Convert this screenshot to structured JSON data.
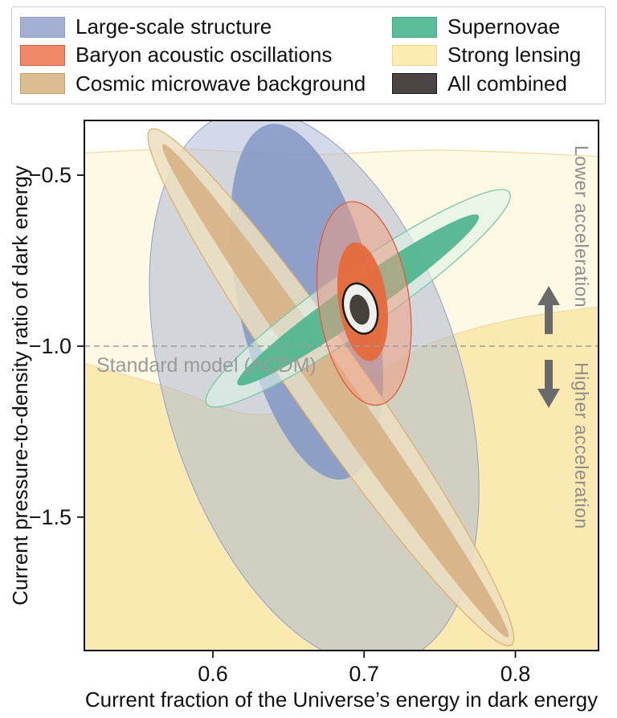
{
  "legend": {
    "items": [
      {
        "label": "Large-scale structure",
        "color": "#a3b0d3",
        "border": "#8fa0c8"
      },
      {
        "label": "Baryon acoustic oscillations",
        "color": "#f08a66",
        "border": "#de5a3c"
      },
      {
        "label": "Cosmic microwave background",
        "color": "#dcbd92",
        "border": "#c7a06c"
      },
      {
        "label": "Supernovae",
        "color": "#5cbd99",
        "border": "#44a782"
      },
      {
        "label": "Strong lensing",
        "color": "#fcecb2",
        "border": "#e9d493"
      },
      {
        "label": "All combined",
        "color": "#4b4641",
        "border": "#1b1b1b"
      }
    ]
  },
  "chart_data": {
    "type": "confidence_regions",
    "title": "",
    "xlabel": "Current fraction of the Universe’s energy in dark energy",
    "ylabel": "Current pressure-to-density ratio of dark energy",
    "xlim": [
      0.515,
      0.855
    ],
    "ylim": [
      -1.89,
      -0.34
    ],
    "xticks": [
      "0.6",
      "0.7",
      "0.8"
    ],
    "xtick_values": [
      0.6,
      0.7,
      0.8
    ],
    "yticks": [
      "−0.5",
      "−1.0",
      "−1.5"
    ],
    "ytick_values": [
      -0.5,
      -1.0,
      -1.5
    ],
    "grid": false,
    "legend_position": "top",
    "reference_line": {
      "y": -1.0,
      "label": "Standard model (ΛCDM)",
      "style": "dashed",
      "color": "#9b9b9b"
    },
    "annotations": {
      "lower": "Lower acceleration",
      "higher": "Higher acceleration"
    },
    "series": [
      {
        "id": "strong-lensing",
        "name": "Strong lensing",
        "type": "band",
        "levels": [
          {
            "top_boundary": [
              [
                0.515,
                -0.435
              ],
              [
                0.58,
                -0.424
              ],
              [
                0.66,
                -0.44
              ],
              [
                0.75,
                -0.427
              ],
              [
                0.855,
                -0.445
              ]
            ],
            "fill": "#fdf8e1",
            "opacity": 0.9,
            "stroke": "#eed9a0",
            "sw": 1.2
          },
          {
            "top_boundary": [
              [
                0.515,
                -1.05
              ],
              [
                0.57,
                -1.12
              ],
              [
                0.63,
                -1.2
              ],
              [
                0.69,
                -1.12
              ],
              [
                0.745,
                -0.99
              ],
              [
                0.8,
                -0.92
              ],
              [
                0.855,
                -0.885
              ]
            ],
            "fill": "#fae9ae",
            "opacity": 0.95,
            "stroke": "#eed59b",
            "sw": 1
          }
        ]
      },
      {
        "id": "large-scale-structure",
        "name": "Large-scale structure",
        "type": "ellipses",
        "levels": [
          {
            "cx": 0.667,
            "cy": -1.12,
            "rx": 0.098,
            "ry": 0.84,
            "angle": -17,
            "fill": "#a8b3d1",
            "opacity": 0.5,
            "stroke": "#8fa0c8",
            "sw": 1
          },
          {
            "cx": 0.662,
            "cy": -0.87,
            "rx": 0.045,
            "ry": 0.53,
            "angle": -12,
            "fill": "#8396c5",
            "opacity": 0.85
          }
        ]
      },
      {
        "id": "cosmic-microwave-background",
        "name": "Cosmic microwave background",
        "type": "ellipses",
        "levels": [
          {
            "cx": 0.678,
            "cy": -1.12,
            "rx": 0.024,
            "ry": 0.92,
            "angle": -35,
            "fill": "#ecdfc0",
            "opacity": 0.85,
            "stroke": "#ddab6c",
            "sw": 1.2
          },
          {
            "cx": 0.681,
            "cy": -1.13,
            "rx": 0.0115,
            "ry": 0.88,
            "angle": -35,
            "fill": "#d7b285",
            "opacity": 0.92
          }
        ]
      },
      {
        "id": "supernovae",
        "name": "Supernovae",
        "type": "ellipses",
        "levels": [
          {
            "cx": 0.696,
            "cy": -0.86,
            "rx": 0.02,
            "ry": 0.54,
            "angle": 55,
            "fill": "#def1e8",
            "opacity": 0.6,
            "stroke": "#79c7a6",
            "sw": 1.3
          },
          {
            "cx": 0.696,
            "cy": -0.865,
            "rx": 0.0115,
            "ry": 0.43,
            "angle": 55,
            "fill": "#53b690",
            "opacity": 0.95
          }
        ]
      },
      {
        "id": "baryon-acoustic-oscillations",
        "name": "Baryon acoustic oscillations",
        "type": "ellipses",
        "levels": [
          {
            "cx": 0.7,
            "cy": -0.875,
            "rx": 0.03,
            "ry": 0.3,
            "angle": -8,
            "fill": "#f4997a",
            "opacity": 0.5,
            "stroke": "#df5a3c",
            "sw": 1.3
          },
          {
            "cx": 0.699,
            "cy": -0.87,
            "rx": 0.016,
            "ry": 0.175,
            "angle": -8,
            "fill": "#e5693c",
            "opacity": 0.95
          }
        ]
      },
      {
        "id": "all-combined",
        "name": "All combined",
        "type": "ellipses",
        "levels": [
          {
            "cx": 0.6975,
            "cy": -0.89,
            "rx": 0.011,
            "ry": 0.075,
            "angle": -15,
            "fill": "#efefeb",
            "opacity": 1,
            "stroke": "#1b1b1b",
            "sw": 2.5
          },
          {
            "cx": 0.697,
            "cy": -0.893,
            "rx": 0.0062,
            "ry": 0.045,
            "angle": -15,
            "fill": "#45403a",
            "opacity": 1
          }
        ]
      }
    ]
  }
}
